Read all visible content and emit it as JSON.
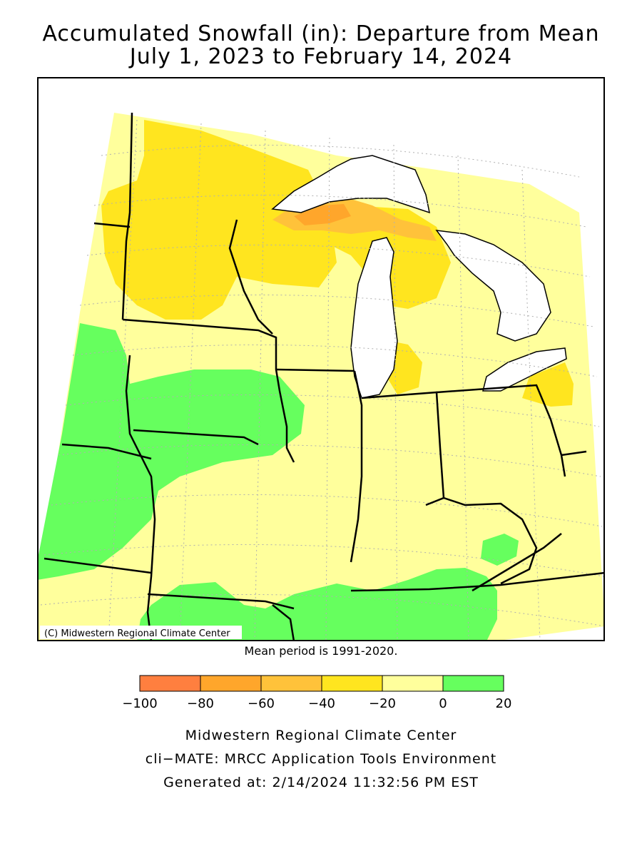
{
  "title": {
    "line1": "Accumulated Snowfall (in): Departure from Mean",
    "line2": "July 1, 2023 to February 14, 2024"
  },
  "map": {
    "copyright": "(C) Midwestern Regional Climate Center",
    "colors": {
      "lake": "#ffffff",
      "border": "#000000",
      "grid": "#b0b0b0"
    }
  },
  "mean_period": "Mean period is 1991-2020.",
  "legend": {
    "bins": [
      {
        "min": -100,
        "max": -80,
        "color": "#ff7f3f"
      },
      {
        "min": -80,
        "max": -60,
        "color": "#ffa62b"
      },
      {
        "min": -60,
        "max": -40,
        "color": "#ffc23a"
      },
      {
        "min": -40,
        "max": -20,
        "color": "#ffe51f"
      },
      {
        "min": -20,
        "max": 0,
        "color": "#ffff9c"
      },
      {
        "min": 0,
        "max": 20,
        "color": "#66ff5e"
      }
    ],
    "tick_labels": [
      "−100",
      "−80",
      "−60",
      "−40",
      "−20",
      "0",
      "20"
    ]
  },
  "footer": {
    "line1": "Midwestern Regional Climate Center",
    "line2": "cli−MATE: MRCC Application Tools Environment",
    "line3": "Generated at: 2/14/2024 11:32:56 PM EST"
  }
}
